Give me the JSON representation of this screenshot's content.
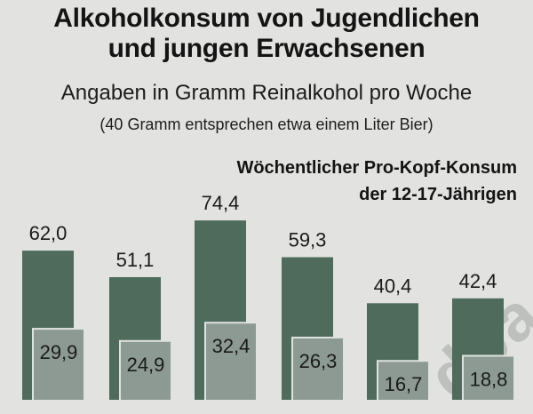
{
  "title_line1": "Alkoholkonsum von Jugendlichen",
  "title_line2": "und jungen Erwachsenen",
  "subtitle": "Angaben in Gramm Reinalkohol pro Woche",
  "note": "(40 Gramm entsprechen etwa einem Liter Bier)",
  "chart_title_line1": "Wöchentlicher Pro-Kopf-Konsum",
  "chart_title_line2": "der 12-17-Jährigen",
  "colors": {
    "background": "#e2e3e1",
    "series_dark": "#4e6b5c",
    "series_light": "#8d9a93"
  },
  "chart_data": {
    "type": "bar",
    "title": "Wöchentlicher Pro-Kopf-Konsum der 12-17-Jährigen",
    "categories": [
      "",
      "",
      "",
      "",
      "",
      ""
    ],
    "series": [
      {
        "values": [
          62.0,
          51.1,
          74.4,
          59.3,
          40.4,
          42.4
        ],
        "labels": [
          "62,0",
          "51,1",
          "74,4",
          "59,3",
          "40,4",
          "42,4"
        ]
      },
      {
        "values": [
          29.9,
          24.9,
          32.4,
          26.3,
          16.7,
          18.8
        ],
        "labels": [
          "29,9",
          "24,9",
          "32,4",
          "26,3",
          "16,7",
          "18,8"
        ]
      }
    ],
    "ylim": [
      0,
      80
    ],
    "grid": false,
    "legend": "none"
  }
}
